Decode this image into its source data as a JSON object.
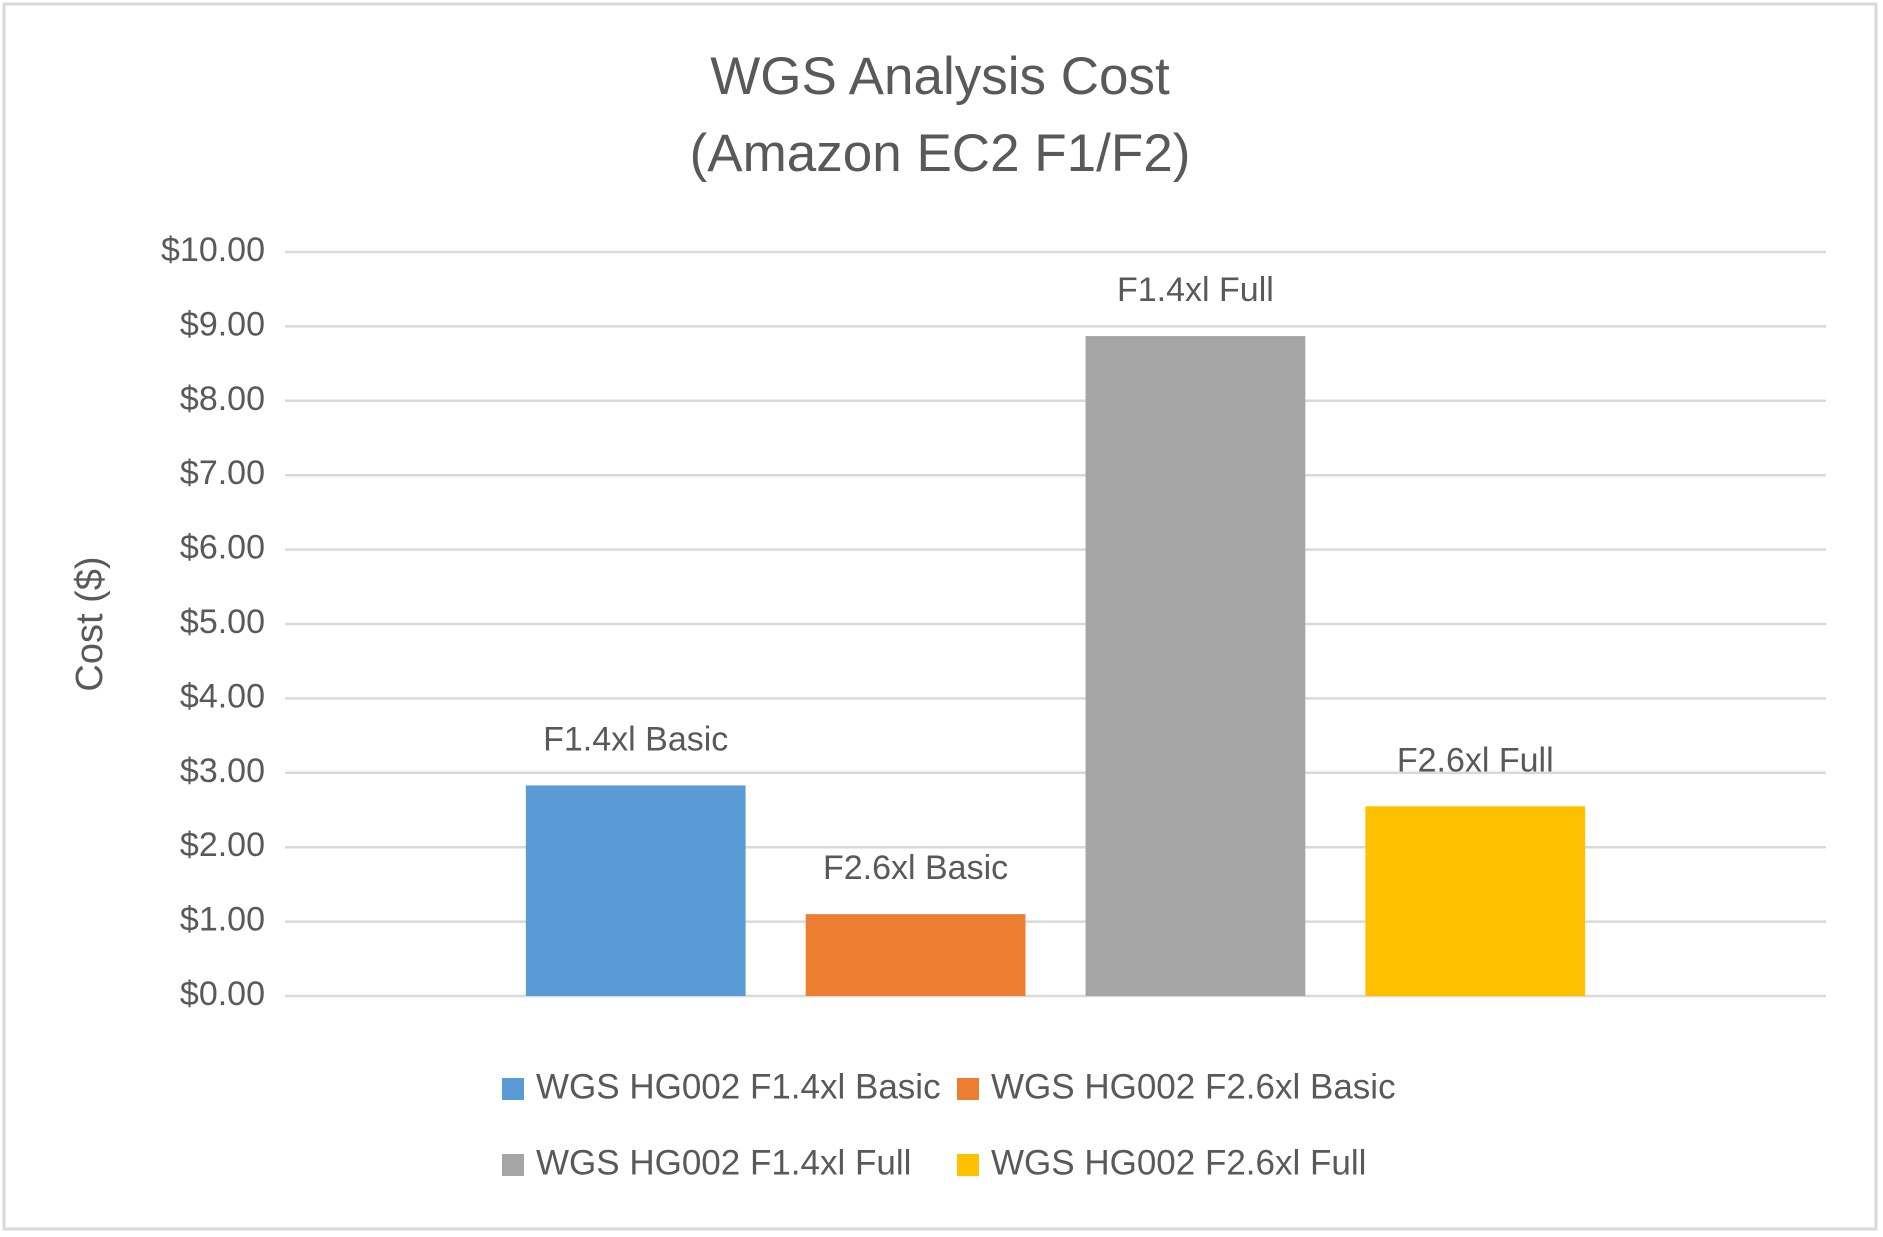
{
  "chart_data": {
    "type": "bar",
    "title": [
      "WGS Analysis Cost",
      "(Amazon EC2 F1/F2)"
    ],
    "y_label": "Cost ($)",
    "categories": [
      null
    ],
    "series": [
      {
        "name": "WGS HG002 F1.4xl Basic",
        "color": "#5b9bd5",
        "values": [
          2.83
        ],
        "bar_label": "F1.4xl Basic"
      },
      {
        "name": "WGS HG002 F2.6xl Basic",
        "color": "#ed7d31",
        "values": [
          1.1
        ],
        "bar_label": "F2.6xl Basic"
      },
      {
        "name": "WGS HG002 F1.4xl Full",
        "color": "#a5a5a5",
        "values": [
          8.87
        ],
        "bar_label": "F1.4xl Full"
      },
      {
        "name": "WGS HG002 F2.6xl Full",
        "color": "#ffc000",
        "values": [
          2.55
        ],
        "bar_label": "F2.6xl Full"
      }
    ],
    "ylim": [
      0,
      10
    ],
    "yticks": [
      {
        "value": 0,
        "label": "$0.00"
      },
      {
        "value": 1,
        "label": "$1.00"
      },
      {
        "value": 2,
        "label": "$2.00"
      },
      {
        "value": 3,
        "label": "$3.00"
      },
      {
        "value": 4,
        "label": "$4.00"
      },
      {
        "value": 5,
        "label": "$5.00"
      },
      {
        "value": 6,
        "label": "$6.00"
      },
      {
        "value": 7,
        "label": "$7.00"
      },
      {
        "value": 8,
        "label": "$8.00"
      },
      {
        "value": 9,
        "label": "$9.00"
      },
      {
        "value": 10,
        "label": "$10.00"
      }
    ],
    "grid": true,
    "legend": "bottom"
  }
}
